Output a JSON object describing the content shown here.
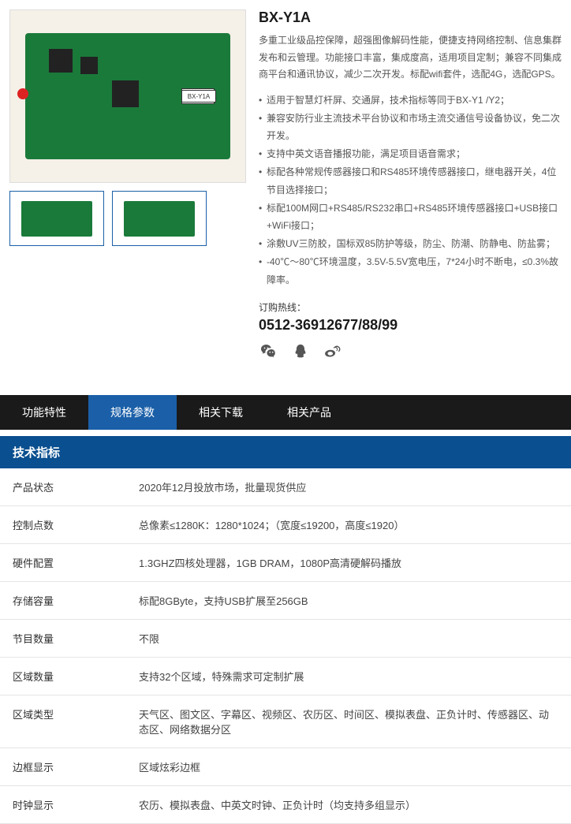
{
  "product": {
    "title": "BX-Y1A",
    "description": "多重工业级品控保障，超强图像解码性能，便捷支持网络控制、信息集群发布和云管理。功能接口丰富，集成度高，适用项目定制；兼容不同集成商平台和通讯协议，减少二次开发。标配wifi套件，选配4G，选配GPS。",
    "bullets": [
      "适用于智慧灯杆屏、交通屏，技术指标等同于BX-Y1 /Y2；",
      "兼容安防行业主流技术平台协议和市场主流交通信号设备协议，免二次开发。",
      "支持中英文语音播报功能，满足项目语音需求；",
      "标配各种常规传感器接口和RS485环境传感器接口，继电器开关，4位节目选择接口；",
      "标配100M网口+RS485/RS232串口+RS485环境传感器接口+USB接口+WiFi接口；",
      "涂敷UV三防胶，国标双85防护等级，防尘、防潮、防静电、防盐雾；",
      "-40℃～80℃环境温度，3.5V-5.5V宽电压，7*24小时不断电，≤0.3%故障率。"
    ],
    "hotline_label": "订购热线：",
    "hotline": "0512-36912677/88/99"
  },
  "tabs": [
    {
      "label": "功能特性",
      "active": false
    },
    {
      "label": "规格参数",
      "active": true
    },
    {
      "label": "相关下载",
      "active": false
    },
    {
      "label": "相关产品",
      "active": false
    }
  ],
  "spec": {
    "header": "技术指标",
    "rows": [
      {
        "k": "产品状态",
        "v": "2020年12月投放市场，批量现货供应"
      },
      {
        "k": "控制点数",
        "v": "总像素≤1280K：1280*1024；（宽度≤19200，高度≤1920）"
      },
      {
        "k": "硬件配置",
        "v": "1.3GHZ四核处理器，1GB DRAM，1080P高清硬解码播放"
      },
      {
        "k": "存储容量",
        "v": "标配8GByte，支持USB扩展至256GB"
      },
      {
        "k": "节目数量",
        "v": "不限"
      },
      {
        "k": "区域数量",
        "v": "支持32个区域，特殊需求可定制扩展"
      },
      {
        "k": "区域类型",
        "v": "天气区、图文区、字幕区、视频区、农历区、时间区、模拟表盘、正负计时、传感器区、动态区、网络数据分区"
      },
      {
        "k": "边框显示",
        "v": "区域炫彩边框"
      },
      {
        "k": "时钟显示",
        "v": "农历、模拟表盘、中英文时钟、正负计时（均支持多组显示）"
      }
    ]
  },
  "colors": {
    "tab_bg": "#1a1a1a",
    "tab_active": "#1a5fa8",
    "spec_header": "#0a4f8f",
    "pcb": "#1a7a3a"
  }
}
